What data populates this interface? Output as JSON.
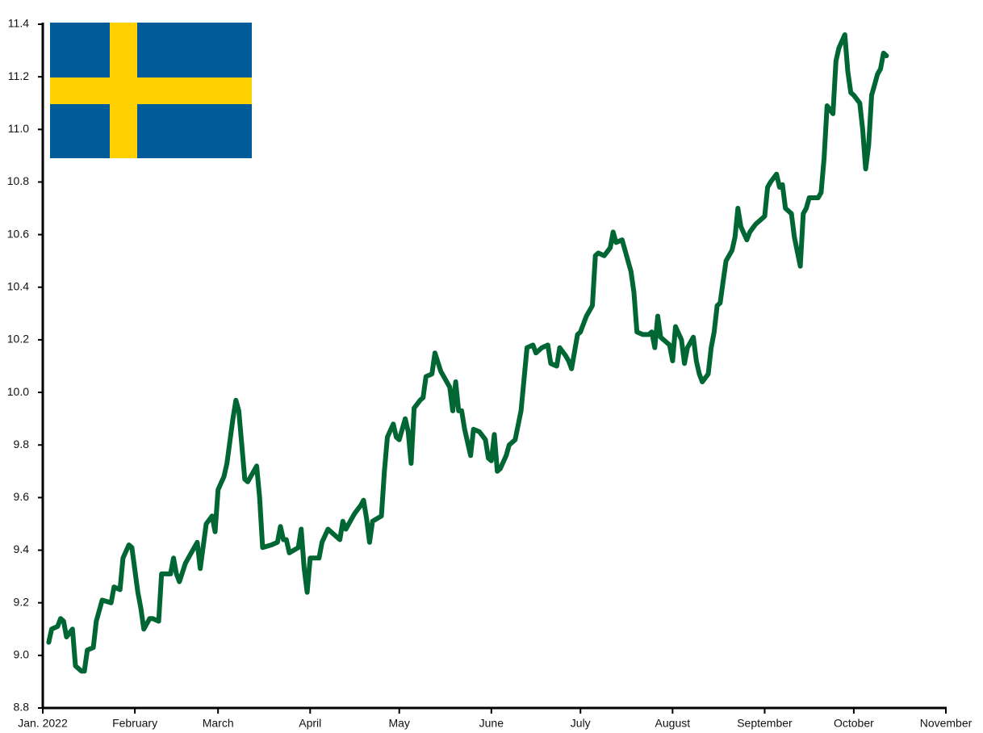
{
  "chart_data": {
    "type": "line",
    "color": "#006633",
    "xlim": [
      0,
      304
    ],
    "xticks": [
      {
        "value": 0,
        "label": "Jan. 2022"
      },
      {
        "value": 31,
        "label": "February"
      },
      {
        "value": 59,
        "label": "March"
      },
      {
        "value": 90,
        "label": "April"
      },
      {
        "value": 120,
        "label": "May"
      },
      {
        "value": 151,
        "label": "June"
      },
      {
        "value": 181,
        "label": "July"
      },
      {
        "value": 212,
        "label": "August"
      },
      {
        "value": 243,
        "label": "September"
      },
      {
        "value": 273,
        "label": "October"
      },
      {
        "value": 304,
        "label": "November"
      }
    ],
    "ylim": [
      8.8,
      11.4
    ],
    "yticks": [
      8.8,
      {
        "value": 9,
        "label": "9.0"
      },
      9.2,
      9.4,
      9.6,
      9.8,
      {
        "value": 10,
        "label": "10.0"
      },
      10.2,
      10.4,
      10.6,
      10.8,
      {
        "value": 11,
        "label": "11.0"
      },
      11.2,
      11.4
    ],
    "x": [
      2,
      3,
      5,
      6,
      7,
      8,
      10,
      11,
      13,
      14,
      15,
      17,
      18,
      20,
      23,
      24,
      26,
      27,
      29,
      30,
      32,
      33,
      34,
      36,
      37,
      39,
      40,
      43,
      44,
      45,
      46,
      48,
      50,
      52,
      53,
      55,
      57,
      58,
      59,
      61,
      62,
      64,
      65,
      66,
      68,
      69,
      72,
      73,
      74,
      77,
      79,
      80,
      81,
      82,
      83,
      86,
      87,
      88,
      89,
      90,
      93,
      94,
      96,
      98,
      100,
      101,
      102,
      104,
      105,
      107,
      108,
      109,
      110,
      111,
      114,
      115,
      116,
      118,
      119,
      120,
      122,
      123,
      124,
      125,
      127,
      128,
      129,
      131,
      132,
      134,
      135,
      137,
      138,
      139,
      140,
      141,
      142,
      144,
      145,
      147,
      149,
      150,
      151,
      152,
      153,
      154,
      156,
      157,
      159,
      161,
      162,
      163,
      165,
      166,
      168,
      170,
      171,
      173,
      174,
      176,
      177,
      178,
      180,
      181,
      183,
      185,
      186,
      187,
      189,
      191,
      192,
      193,
      195,
      196,
      198,
      199,
      200,
      202,
      204,
      205,
      206,
      207,
      208,
      211,
      212,
      213,
      215,
      216,
      217,
      219,
      220,
      221,
      222,
      224,
      225,
      226,
      227,
      228,
      229,
      230,
      232,
      233,
      234,
      235,
      237,
      238,
      240,
      242,
      243,
      244,
      245,
      247,
      248,
      249,
      250,
      252,
      253,
      255,
      256,
      257,
      258,
      261,
      262,
      263,
      264,
      266,
      267,
      268,
      270,
      271,
      272,
      273,
      275,
      276,
      277,
      278,
      279,
      280,
      281,
      282,
      283,
      284
    ],
    "values": [
      9.05,
      9.1,
      9.11,
      9.14,
      9.13,
      9.07,
      9.1,
      8.96,
      8.94,
      8.94,
      9.02,
      9.03,
      9.13,
      9.21,
      9.2,
      9.26,
      9.25,
      9.37,
      9.42,
      9.41,
      9.24,
      9.18,
      9.1,
      9.14,
      9.14,
      9.13,
      9.31,
      9.31,
      9.37,
      9.31,
      9.28,
      9.35,
      9.39,
      9.43,
      9.33,
      9.5,
      9.53,
      9.47,
      9.63,
      9.68,
      9.73,
      9.9,
      9.97,
      9.93,
      9.67,
      9.66,
      9.72,
      9.6,
      9.41,
      9.42,
      9.43,
      9.49,
      9.44,
      9.44,
      9.39,
      9.41,
      9.48,
      9.33,
      9.24,
      9.37,
      9.37,
      9.43,
      9.48,
      9.46,
      9.44,
      9.51,
      9.48,
      9.52,
      9.54,
      9.57,
      9.59,
      9.52,
      9.43,
      9.51,
      9.53,
      9.7,
      9.83,
      9.88,
      9.83,
      9.82,
      9.9,
      9.85,
      9.73,
      9.94,
      9.97,
      9.98,
      10.06,
      10.07,
      10.15,
      10.08,
      10.06,
      10.02,
      9.93,
      10.04,
      9.93,
      9.93,
      9.86,
      9.76,
      9.86,
      9.85,
      9.82,
      9.75,
      9.74,
      9.84,
      9.7,
      9.71,
      9.76,
      9.8,
      9.82,
      9.93,
      10.05,
      10.17,
      10.18,
      10.15,
      10.17,
      10.18,
      10.11,
      10.1,
      10.17,
      10.14,
      10.12,
      10.09,
      10.22,
      10.23,
      10.29,
      10.33,
      10.52,
      10.53,
      10.52,
      10.55,
      10.61,
      10.57,
      10.58,
      10.54,
      10.46,
      10.38,
      10.23,
      10.22,
      10.22,
      10.23,
      10.17,
      10.29,
      10.21,
      10.18,
      10.12,
      10.25,
      10.2,
      10.11,
      10.17,
      10.21,
      10.12,
      10.07,
      10.04,
      10.07,
      10.17,
      10.23,
      10.33,
      10.34,
      10.42,
      10.5,
      10.54,
      10.59,
      10.7,
      10.63,
      10.58,
      10.61,
      10.64,
      10.66,
      10.67,
      10.78,
      10.8,
      10.83,
      10.78,
      10.79,
      10.7,
      10.68,
      10.59,
      10.48,
      10.68,
      10.7,
      10.74,
      10.74,
      10.76,
      10.89,
      11.09,
      11.06,
      11.26,
      11.31,
      11.36,
      11.22,
      11.14,
      11.13,
      11.1,
      11.0,
      10.85,
      10.94,
      11.13,
      11.17,
      11.21,
      11.23,
      11.29,
      11.28
    ]
  }
}
